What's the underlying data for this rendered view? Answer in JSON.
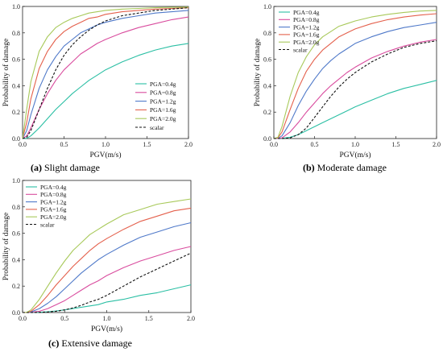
{
  "colors": {
    "PGA=0.4g": "#2bbfa4",
    "PGA=0.8g": "#d94c9e",
    "PGA=1.2g": "#4f79c9",
    "PGA=1.6g": "#e4604c",
    "PGA=2.0g": "#a8c95a",
    "scalar": "#111111"
  },
  "chart_data": [
    {
      "id": "a",
      "type": "line",
      "caption_letter": "(a)",
      "caption_text": " Slight damage",
      "xlabel": "PGV(m/s)",
      "ylabel": "Probability of damage",
      "xlim": [
        0,
        2.0
      ],
      "ylim": [
        0,
        1.0
      ],
      "xticks": [
        "0.0",
        "0.5",
        "1.0",
        "1.5",
        "2.0"
      ],
      "yticks": [
        "0.0",
        "0.2",
        "0.4",
        "0.6",
        "0.8",
        "1.0"
      ],
      "legend_position": "lower-right",
      "x": [
        0,
        0.05,
        0.1,
        0.2,
        0.3,
        0.4,
        0.5,
        0.6,
        0.7,
        0.8,
        0.9,
        1.0,
        1.2,
        1.4,
        1.6,
        1.8,
        2.0
      ],
      "series": [
        {
          "name": "PGA=0.4g",
          "dash": false,
          "values": [
            0,
            0.002,
            0.02,
            0.08,
            0.15,
            0.22,
            0.28,
            0.34,
            0.39,
            0.44,
            0.48,
            0.52,
            0.58,
            0.63,
            0.67,
            0.7,
            0.72
          ]
        },
        {
          "name": "PGA=0.8g",
          "dash": false,
          "values": [
            0,
            0.02,
            0.08,
            0.22,
            0.34,
            0.44,
            0.52,
            0.58,
            0.64,
            0.68,
            0.72,
            0.75,
            0.8,
            0.84,
            0.87,
            0.9,
            0.92
          ]
        },
        {
          "name": "PGA=1.2g",
          "dash": false,
          "values": [
            0,
            0.06,
            0.18,
            0.38,
            0.52,
            0.62,
            0.7,
            0.75,
            0.8,
            0.83,
            0.86,
            0.88,
            0.91,
            0.93,
            0.95,
            0.96,
            0.97
          ]
        },
        {
          "name": "PGA=1.6g",
          "dash": false,
          "values": [
            0,
            0.12,
            0.3,
            0.53,
            0.66,
            0.75,
            0.81,
            0.85,
            0.88,
            0.91,
            0.92,
            0.94,
            0.96,
            0.97,
            0.98,
            0.985,
            0.99
          ]
        },
        {
          "name": "PGA=2.0g",
          "dash": false,
          "values": [
            0,
            0.22,
            0.43,
            0.66,
            0.77,
            0.84,
            0.88,
            0.91,
            0.93,
            0.95,
            0.96,
            0.97,
            0.98,
            0.985,
            0.99,
            0.993,
            0.995
          ]
        },
        {
          "name": "scalar",
          "dash": true,
          "values": [
            0,
            0.01,
            0.06,
            0.22,
            0.38,
            0.52,
            0.63,
            0.71,
            0.77,
            0.82,
            0.86,
            0.89,
            0.93,
            0.95,
            0.97,
            0.98,
            0.99
          ]
        }
      ]
    },
    {
      "id": "b",
      "type": "line",
      "caption_letter": "(b)",
      "caption_text": " Moderate damage",
      "xlabel": "PGV(m/s)",
      "ylabel": "Probability of damage",
      "xlim": [
        0,
        2.0
      ],
      "ylim": [
        0,
        1.0
      ],
      "xticks": [
        "0.0",
        "0.5",
        "1.0",
        "1.5",
        "2.0"
      ],
      "yticks": [
        "0.0",
        "0.2",
        "0.4",
        "0.6",
        "0.8",
        "1.0"
      ],
      "legend_position": "top-left",
      "x": [
        0,
        0.05,
        0.1,
        0.2,
        0.3,
        0.4,
        0.5,
        0.6,
        0.7,
        0.8,
        0.9,
        1.0,
        1.2,
        1.4,
        1.6,
        1.8,
        2.0
      ],
      "series": [
        {
          "name": "PGA=0.4g",
          "dash": false,
          "values": [
            0,
            0,
            0.002,
            0.01,
            0.03,
            0.06,
            0.09,
            0.12,
            0.15,
            0.18,
            0.21,
            0.24,
            0.29,
            0.34,
            0.38,
            0.41,
            0.44
          ]
        },
        {
          "name": "PGA=0.8g",
          "dash": false,
          "values": [
            0,
            0,
            0.005,
            0.05,
            0.12,
            0.2,
            0.27,
            0.34,
            0.4,
            0.45,
            0.5,
            0.54,
            0.61,
            0.66,
            0.7,
            0.73,
            0.75
          ]
        },
        {
          "name": "PGA=1.2g",
          "dash": false,
          "values": [
            0,
            0.002,
            0.02,
            0.12,
            0.25,
            0.36,
            0.45,
            0.53,
            0.59,
            0.64,
            0.68,
            0.72,
            0.77,
            0.81,
            0.84,
            0.86,
            0.88
          ]
        },
        {
          "name": "PGA=1.6g",
          "dash": false,
          "values": [
            0,
            0.005,
            0.05,
            0.22,
            0.38,
            0.51,
            0.6,
            0.67,
            0.72,
            0.77,
            0.8,
            0.83,
            0.87,
            0.9,
            0.92,
            0.935,
            0.945
          ]
        },
        {
          "name": "PGA=2.0g",
          "dash": false,
          "values": [
            0,
            0.01,
            0.09,
            0.32,
            0.5,
            0.62,
            0.71,
            0.77,
            0.81,
            0.85,
            0.87,
            0.89,
            0.92,
            0.94,
            0.955,
            0.965,
            0.97
          ]
        },
        {
          "name": "scalar",
          "dash": true,
          "values": [
            0,
            0,
            0,
            0.005,
            0.03,
            0.08,
            0.16,
            0.24,
            0.32,
            0.39,
            0.45,
            0.5,
            0.58,
            0.64,
            0.69,
            0.72,
            0.74
          ]
        }
      ]
    },
    {
      "id": "c",
      "type": "line",
      "caption_letter": "(c)",
      "caption_text": " Extensive damage",
      "xlabel": "PGV(m/s)",
      "ylabel": "Probability of damage",
      "xlim": [
        0,
        2.0
      ],
      "ylim": [
        0,
        1.0
      ],
      "xticks": [
        "0.0",
        "0.5",
        "1.0",
        "1.5",
        "2.0"
      ],
      "yticks": [
        "0.0",
        "0.2",
        "0.4",
        "0.6",
        "0.8",
        "1.0"
      ],
      "legend_position": "top-left",
      "x": [
        0,
        0.05,
        0.1,
        0.2,
        0.3,
        0.4,
        0.5,
        0.6,
        0.7,
        0.8,
        0.9,
        1.0,
        1.2,
        1.4,
        1.6,
        1.8,
        2.0
      ],
      "series": [
        {
          "name": "PGA=0.4g",
          "dash": false,
          "values": [
            0,
            0,
            0,
            0.002,
            0.006,
            0.012,
            0.02,
            0.03,
            0.04,
            0.05,
            0.06,
            0.08,
            0.1,
            0.13,
            0.15,
            0.18,
            0.21
          ]
        },
        {
          "name": "PGA=0.8g",
          "dash": false,
          "values": [
            0,
            0,
            0.002,
            0.01,
            0.03,
            0.06,
            0.09,
            0.13,
            0.17,
            0.21,
            0.24,
            0.28,
            0.34,
            0.39,
            0.43,
            0.47,
            0.5
          ]
        },
        {
          "name": "PGA=1.2g",
          "dash": false,
          "values": [
            0,
            0,
            0.004,
            0.03,
            0.07,
            0.12,
            0.18,
            0.24,
            0.3,
            0.35,
            0.4,
            0.44,
            0.51,
            0.57,
            0.61,
            0.65,
            0.68
          ]
        },
        {
          "name": "PGA=1.6g",
          "dash": false,
          "values": [
            0,
            0.001,
            0.01,
            0.06,
            0.13,
            0.21,
            0.28,
            0.35,
            0.41,
            0.47,
            0.52,
            0.56,
            0.63,
            0.69,
            0.73,
            0.77,
            0.79
          ]
        },
        {
          "name": "PGA=2.0g",
          "dash": false,
          "values": [
            0,
            0.002,
            0.02,
            0.1,
            0.2,
            0.3,
            0.39,
            0.47,
            0.53,
            0.59,
            0.63,
            0.67,
            0.74,
            0.78,
            0.82,
            0.84,
            0.86
          ]
        },
        {
          "name": "scalar",
          "dash": true,
          "values": [
            0,
            0,
            0,
            0.001,
            0.004,
            0.01,
            0.02,
            0.035,
            0.055,
            0.08,
            0.1,
            0.13,
            0.2,
            0.27,
            0.33,
            0.39,
            0.45
          ]
        }
      ]
    }
  ]
}
